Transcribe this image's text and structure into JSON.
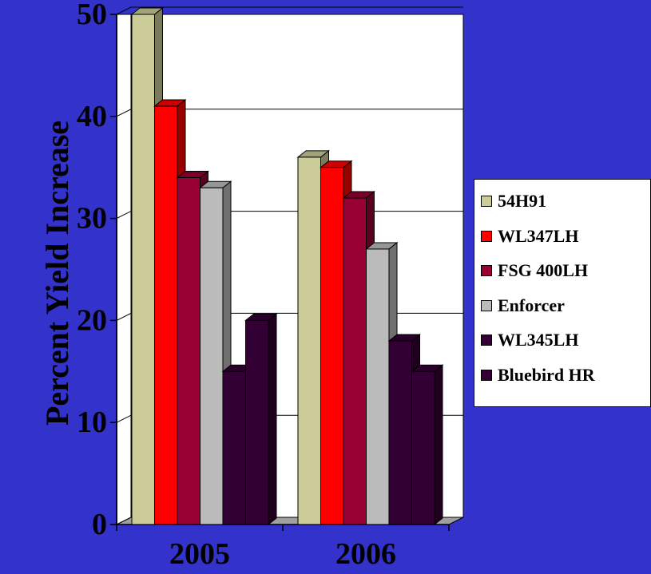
{
  "chart_data": {
    "type": "bar",
    "style": "3d-clustered-column",
    "title": "",
    "xlabel": "",
    "ylabel": "Percent Yield Increase",
    "categories": [
      "2005",
      "2006"
    ],
    "ylim": [
      0,
      50
    ],
    "yticks": [
      0,
      10,
      20,
      30,
      40,
      50
    ],
    "grid": true,
    "legend_position": "right",
    "series": [
      {
        "name": "54H91",
        "values": [
          50,
          36
        ],
        "color": "#cccc99"
      },
      {
        "name": "WL347LH",
        "values": [
          41,
          35
        ],
        "color": "#ff0000"
      },
      {
        "name": "FSG 400LH",
        "values": [
          34,
          32
        ],
        "color": "#990033"
      },
      {
        "name": "Enforcer",
        "values": [
          33,
          27
        ],
        "color": "#bbbbbb"
      },
      {
        "name": "WL345LH",
        "values": [
          15,
          18
        ],
        "color": "#330033"
      },
      {
        "name": "Bluebird HR",
        "values": [
          20,
          15
        ],
        "color": "#330033"
      }
    ]
  },
  "colors": {
    "background": "#3333cc",
    "plot_wall": "#ffffff",
    "axis_text": "#000000"
  }
}
